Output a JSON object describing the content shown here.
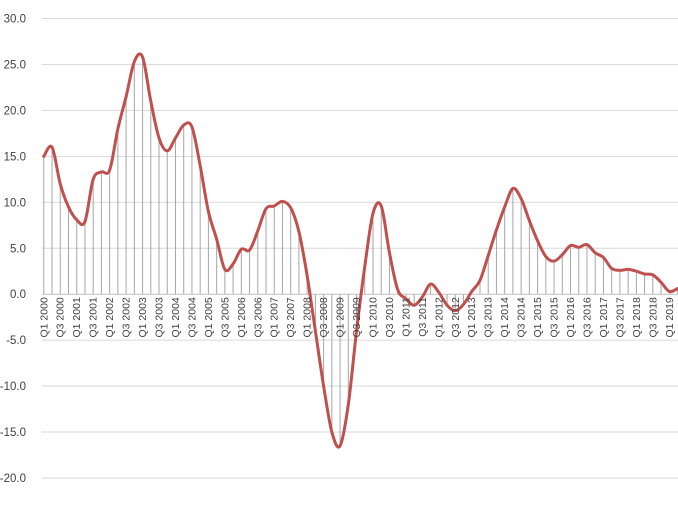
{
  "chart_data": {
    "type": "line",
    "title": "",
    "xlabel": "",
    "ylabel": "",
    "ylim": [
      -20,
      30
    ],
    "y_ticks": [
      "30.0",
      "25.0",
      "20.0",
      "15.0",
      "10.0",
      "5.0",
      "0.0",
      "-5.0",
      "-10.0",
      "-15.0",
      "-20.0"
    ],
    "grid": "horizontal",
    "drop_lines": true,
    "x_tick_labels": [
      "Q1 2000",
      "Q3 2000",
      "Q1 2001",
      "Q3 2001",
      "Q1 2002",
      "Q3 2002",
      "Q1 2003",
      "Q3 2003",
      "Q1 2004",
      "Q3 2004",
      "Q1 2005",
      "Q3 2005",
      "Q1 2006",
      "Q3 2006",
      "Q1 2007",
      "Q3 2007",
      "Q1 2008",
      "Q3 2008",
      "Q1 2009",
      "Q3 2009",
      "Q1 2010",
      "Q3 2010",
      "Q1 2011",
      "Q3 2011",
      "Q1 2012",
      "Q3 2012",
      "Q1 2013",
      "Q3 2013",
      "Q1 2014",
      "Q3 2014",
      "Q1 2015",
      "Q3 2015",
      "Q1 2016",
      "Q3 2016",
      "Q1 2017",
      "Q3 2017",
      "Q1 2018",
      "Q3 2018",
      "Q1 2019"
    ],
    "categories": [
      "Q1 2000",
      "Q2 2000",
      "Q3 2000",
      "Q4 2000",
      "Q1 2001",
      "Q2 2001",
      "Q3 2001",
      "Q4 2001",
      "Q1 2002",
      "Q2 2002",
      "Q3 2002",
      "Q4 2002",
      "Q1 2003",
      "Q2 2003",
      "Q3 2003",
      "Q4 2003",
      "Q1 2004",
      "Q2 2004",
      "Q3 2004",
      "Q4 2004",
      "Q1 2005",
      "Q2 2005",
      "Q3 2005",
      "Q4 2005",
      "Q1 2006",
      "Q2 2006",
      "Q3 2006",
      "Q4 2006",
      "Q1 2007",
      "Q2 2007",
      "Q3 2007",
      "Q4 2007",
      "Q1 2008",
      "Q2 2008",
      "Q3 2008",
      "Q4 2008",
      "Q1 2009",
      "Q2 2009",
      "Q3 2009",
      "Q4 2009",
      "Q1 2010",
      "Q2 2010",
      "Q3 2010",
      "Q4 2010",
      "Q1 2011",
      "Q2 2011",
      "Q3 2011",
      "Q4 2011",
      "Q1 2012",
      "Q2 2012",
      "Q3 2012",
      "Q4 2012",
      "Q1 2013",
      "Q2 2013",
      "Q3 2013",
      "Q4 2013",
      "Q1 2014",
      "Q2 2014",
      "Q3 2014",
      "Q4 2014",
      "Q1 2015",
      "Q2 2015",
      "Q3 2015",
      "Q4 2015",
      "Q1 2016",
      "Q2 2016",
      "Q3 2016",
      "Q4 2016",
      "Q1 2017",
      "Q2 2017",
      "Q3 2017",
      "Q4 2017",
      "Q1 2018",
      "Q2 2018",
      "Q3 2018",
      "Q4 2018",
      "Q1 2019",
      "Q2 2019",
      "Q3 2019"
    ],
    "series": [
      {
        "color": "#c0504d",
        "values": [
          15.0,
          16.0,
          12.0,
          9.5,
          8.1,
          7.9,
          12.5,
          13.3,
          13.5,
          18.0,
          21.5,
          25.3,
          25.8,
          21.0,
          17.0,
          15.6,
          17.0,
          18.4,
          18.2,
          14.0,
          9.0,
          6.0,
          2.7,
          3.3,
          4.9,
          4.8,
          6.9,
          9.3,
          9.6,
          10.1,
          9.4,
          6.8,
          2.0,
          -4.0,
          -10.0,
          -15.0,
          -16.5,
          -12.0,
          -4.0,
          3.0,
          8.8,
          9.6,
          4.5,
          0.5,
          -0.5,
          -1.2,
          -0.3,
          1.1,
          0.2,
          -1.2,
          -1.8,
          -1.1,
          0.3,
          1.5,
          4.2,
          7.0,
          9.5,
          11.5,
          10.4,
          8.0,
          5.8,
          4.1,
          3.6,
          4.3,
          5.3,
          5.1,
          5.4,
          4.5,
          4.0,
          2.8,
          2.6,
          2.7,
          2.5,
          2.2,
          2.1,
          1.3,
          0.3,
          0.6,
          1.0
        ]
      }
    ]
  }
}
